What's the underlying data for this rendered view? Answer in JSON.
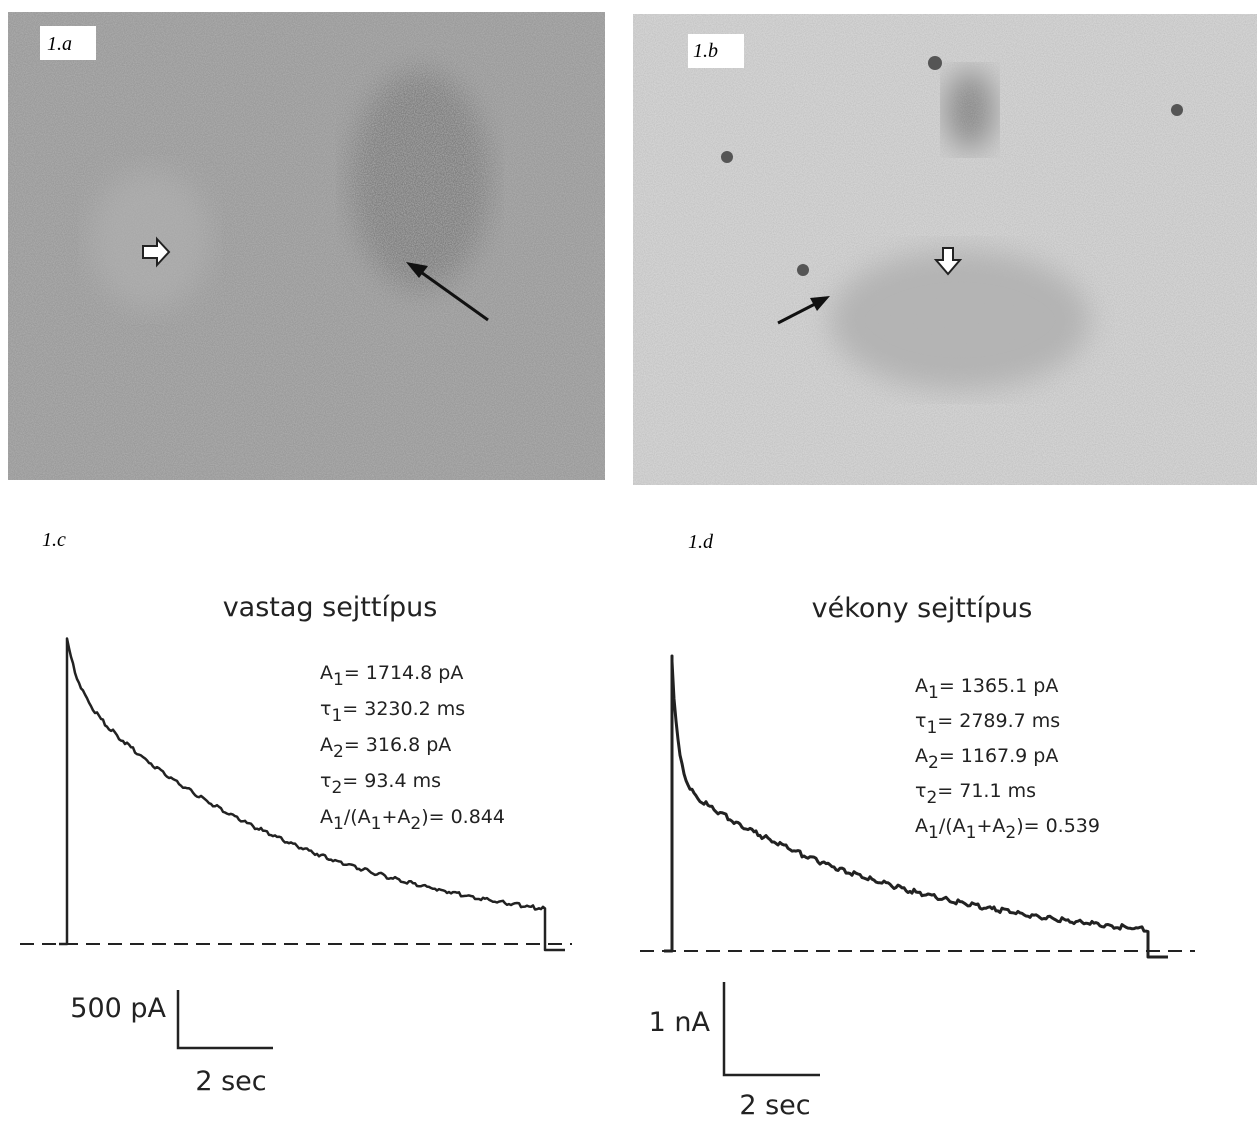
{
  "panels": [
    {
      "label": "1.a"
    },
    {
      "label": "1.b"
    },
    {
      "label": "1.c",
      "title": "vastag sejttípus",
      "params": [
        [
          "A",
          "1",
          "= 1714.8 pA"
        ],
        [
          "τ",
          "1",
          "= 3230.2 ms"
        ],
        [
          "A",
          "2",
          "= 316.8 pA"
        ],
        [
          "τ",
          "2",
          "=  93.4 ms"
        ],
        [
          "A",
          "1",
          "/(A",
          "1",
          "+A",
          "2",
          ")= 0.844"
        ]
      ],
      "scale_y": "500 pA",
      "scale_x": "2 sec"
    },
    {
      "label": "1.d",
      "title": "vékony sejttípus",
      "params": [
        [
          "A",
          "1",
          "= 1365.1 pA"
        ],
        [
          "τ",
          "1",
          "= 2789.7 ms"
        ],
        [
          "A",
          "2",
          "= 1167.9 pA"
        ],
        [
          "τ",
          "2",
          "= 71.1 ms"
        ],
        [
          "A",
          "1",
          "/(A",
          "1",
          "+A",
          "2",
          ")= 0.539"
        ]
      ],
      "scale_y": "1 nA",
      "scale_x": "2 sec"
    }
  ]
}
